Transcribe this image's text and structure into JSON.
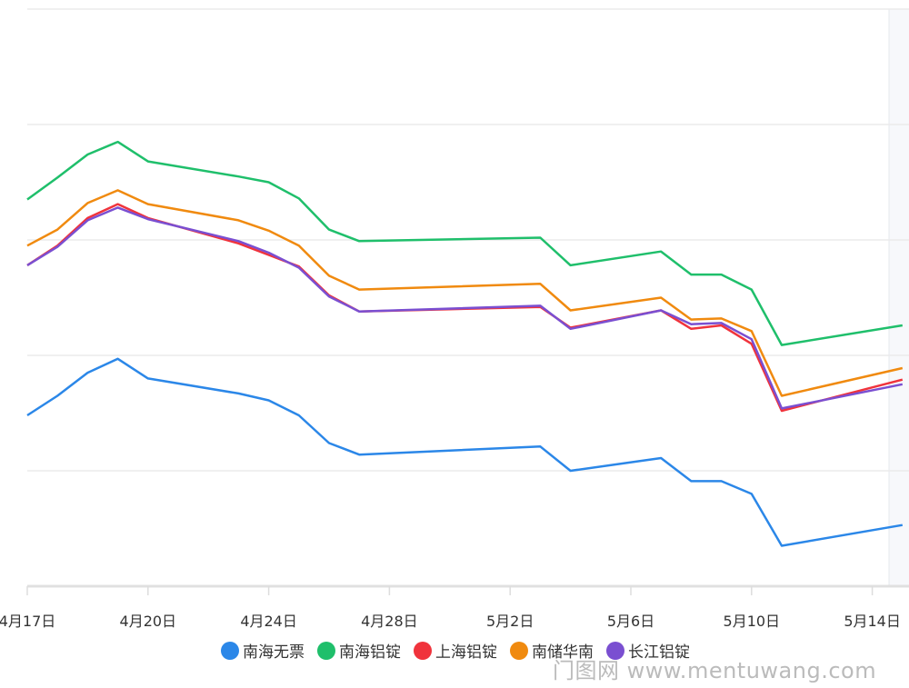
{
  "chart_data": {
    "type": "line",
    "title": "",
    "xlabel": "",
    "ylabel": "",
    "x_unit": "days since 4月17日",
    "x": [
      0,
      1,
      2,
      3,
      4,
      7,
      8,
      9,
      10,
      11,
      17,
      18,
      21,
      22,
      23,
      24,
      25,
      29
    ],
    "xticks": [
      0,
      4,
      8,
      12,
      16,
      20,
      24,
      28
    ],
    "xtick_labels": [
      "4月17日",
      "4月20日",
      "4月24日",
      "4月28日",
      "5月2日",
      "5月6日",
      "5月10日",
      "5月14日"
    ],
    "ylim": [
      0,
      5
    ],
    "yticks": [
      0,
      1,
      2,
      3,
      4,
      5
    ],
    "grid": true,
    "legend_position": "bottom",
    "series": [
      {
        "name": "南海无票",
        "color": "#2b87e8",
        "values": [
          1.48,
          1.65,
          1.85,
          1.97,
          1.8,
          1.67,
          1.61,
          1.48,
          1.24,
          1.14,
          1.21,
          1.0,
          1.11,
          0.91,
          0.91,
          0.8,
          0.35,
          0.53
        ]
      },
      {
        "name": "南海铝锭",
        "color": "#1fbf6b",
        "values": [
          3.35,
          3.54,
          3.74,
          3.85,
          3.68,
          3.55,
          3.5,
          3.36,
          3.09,
          2.99,
          3.02,
          2.78,
          2.9,
          2.7,
          2.7,
          2.57,
          2.09,
          2.26
        ]
      },
      {
        "name": "上海铝锭",
        "color": "#f0333c",
        "values": [
          2.78,
          2.95,
          3.19,
          3.31,
          3.19,
          2.97,
          2.87,
          2.77,
          2.52,
          2.38,
          2.42,
          2.24,
          2.39,
          2.23,
          2.26,
          2.1,
          1.52,
          1.79
        ]
      },
      {
        "name": "南储华南",
        "color": "#f08a0f",
        "values": [
          2.95,
          3.09,
          3.32,
          3.43,
          3.31,
          3.17,
          3.08,
          2.95,
          2.69,
          2.57,
          2.62,
          2.39,
          2.5,
          2.31,
          2.32,
          2.21,
          1.65,
          1.89
        ]
      },
      {
        "name": "长江铝锭",
        "color": "#7a4fd1",
        "values": [
          2.78,
          2.94,
          3.17,
          3.28,
          3.18,
          2.99,
          2.89,
          2.76,
          2.51,
          2.38,
          2.43,
          2.23,
          2.39,
          2.27,
          2.28,
          2.14,
          1.54,
          1.75
        ]
      }
    ]
  },
  "watermark": "门图网 www.mentuwang.com"
}
